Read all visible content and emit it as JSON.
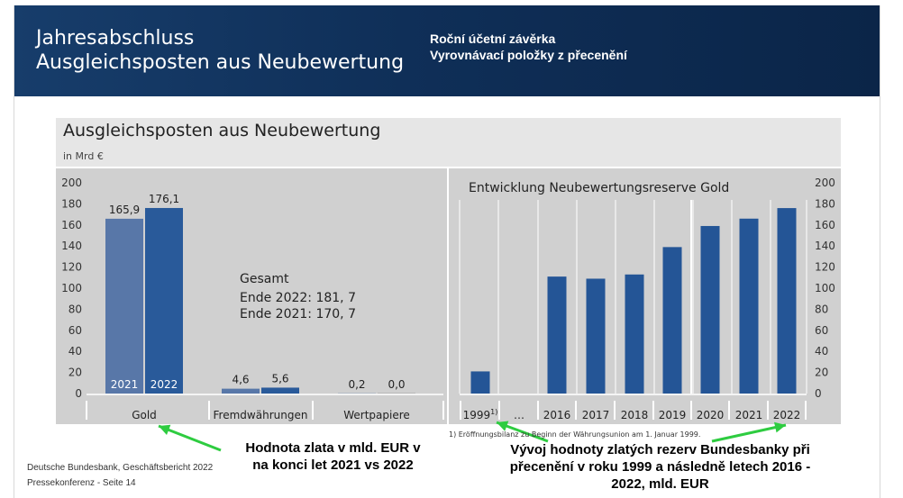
{
  "header": {
    "title_line1": "Jahresabschluss",
    "title_line2": "Ausgleichsposten aus Neubewertung",
    "cz_line1": "Roční účetní závěrka",
    "cz_line2": "Vyrovnávací položky z přecenění"
  },
  "panel": {
    "title": "Ausgleichsposten aus Neubewertung",
    "unit": "in Mrd €"
  },
  "totals": {
    "label": "Gesamt",
    "line1": "Ende 2022: 181, 7",
    "line2": "Ende 2021: 170, 7"
  },
  "colors": {
    "bar_2021": "#5877a8",
    "bar_2022": "#295a9a",
    "bar_right": "#245596",
    "chart_bg": "#d0d0d0",
    "arrow": "#2ecc40"
  },
  "chart_data": [
    {
      "type": "bar",
      "categories": [
        "Gold",
        "Fremdwährungen",
        "Wertpapiere"
      ],
      "series": [
        {
          "name": "2021",
          "values": [
            165.9,
            4.6,
            0.2
          ],
          "labels": [
            "165,9",
            "4,6",
            "0,2"
          ]
        },
        {
          "name": "2022",
          "values": [
            176.1,
            5.6,
            0.0
          ],
          "labels": [
            "176,1",
            "5,6",
            "0,0"
          ]
        }
      ],
      "ylim": [
        0,
        200
      ],
      "yticks": [
        0,
        20,
        40,
        60,
        80,
        100,
        120,
        140,
        160,
        180,
        200
      ],
      "axis": "left",
      "grid": false
    },
    {
      "type": "bar",
      "title": "Entwicklung Neubewertungsreserve Gold",
      "categories": [
        "1999",
        "...",
        "2016",
        "2017",
        "2018",
        "2019",
        "2020",
        "2021",
        "2022"
      ],
      "category_labels": [
        "1999",
        "…",
        "2016",
        "2017",
        "2018",
        "2019",
        "2020",
        "2021",
        "2022"
      ],
      "values": [
        21,
        null,
        111,
        109,
        113,
        139,
        159,
        166,
        176
      ],
      "ylim": [
        0,
        200
      ],
      "yticks": [
        0,
        20,
        40,
        60,
        80,
        100,
        120,
        140,
        160,
        180,
        200
      ],
      "axis": "right",
      "grid": true
    }
  ],
  "footnote": "1) Eröffnungsbilanz zu Beginn der Währungsunion am 1. Januar 1999.",
  "footer": {
    "line1": "Deutsche Bundesbank, Geschäftsbericht 2022",
    "line2": "Pressekonferenz - Seite 14"
  },
  "annotations": {
    "left": "Hodnota zlata v mld. EUR v na konci let 2021 vs 2022",
    "right": "Vývoj hodnoty zlatých rezerv Bundesbanky při přecenění v roku 1999 a následně letech 2016 - 2022, mld. EUR"
  }
}
